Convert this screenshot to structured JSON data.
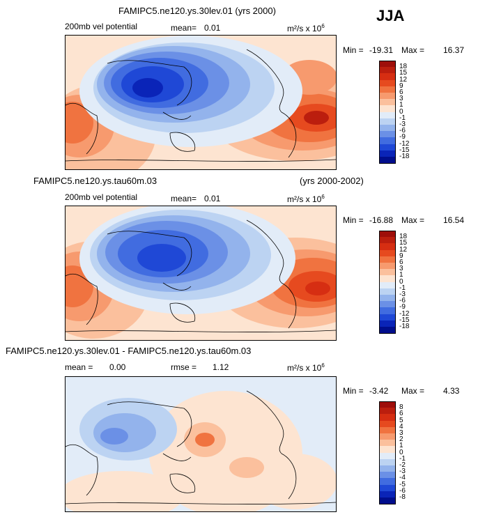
{
  "season": "JJA",
  "panels": [
    {
      "title": "FAMIPC5.ne120.ys.30lev.01 (yrs 2000)",
      "variable": "200mb vel potential",
      "stat1_label": "mean=",
      "stat1_value": "0.01",
      "units": "m²/s x 10",
      "units_exp": "6",
      "min_label": "Min = ",
      "min_value": "-19.31",
      "max_label": "Max = ",
      "max_value": "16.37",
      "colorbar": {
        "labels": [
          "18",
          "15",
          "12",
          "9",
          "6",
          "3",
          "1",
          "0",
          "-1",
          "-3",
          "-6",
          "-9",
          "-12",
          "-15",
          "-18"
        ],
        "colors": [
          "#9e0e0a",
          "#bb1e0e",
          "#d62e12",
          "#e64a1f",
          "#f07340",
          "#f79a6e",
          "#fbc09d",
          "#fde4d1",
          "#e2ecf8",
          "#bcd3f2",
          "#93b3ec",
          "#6b90e6",
          "#416ce0",
          "#1f48d6",
          "#0a24b8",
          "#000e8c"
        ]
      }
    },
    {
      "title": "FAMIPC5.ne120.ys.tau60m.03",
      "title_right": "(yrs 2000-2002)",
      "variable": "200mb vel potential",
      "stat1_label": "mean=",
      "stat1_value": "0.01",
      "units": "m²/s x 10",
      "units_exp": "6",
      "min_label": "Min = ",
      "min_value": "-16.88",
      "max_label": "Max = ",
      "max_value": "16.54",
      "colorbar": {
        "labels": [
          "18",
          "15",
          "12",
          "9",
          "6",
          "3",
          "1",
          "0",
          "-1",
          "-3",
          "-6",
          "-9",
          "-12",
          "-15",
          "-18"
        ],
        "colors": [
          "#9e0e0a",
          "#bb1e0e",
          "#d62e12",
          "#e64a1f",
          "#f07340",
          "#f79a6e",
          "#fbc09d",
          "#fde4d1",
          "#e2ecf8",
          "#bcd3f2",
          "#93b3ec",
          "#6b90e6",
          "#416ce0",
          "#1f48d6",
          "#0a24b8",
          "#000e8c"
        ]
      }
    },
    {
      "title": "FAMIPC5.ne120.ys.30lev.01 - FAMIPC5.ne120.ys.tau60m.03",
      "stat1_label": "mean =",
      "stat1_value": "0.00",
      "stat2_label": "rmse =",
      "stat2_value": "1.12",
      "units": "m²/s x 10",
      "units_exp": "6",
      "min_label": "Min = ",
      "min_value": "-3.42",
      "max_label": "Max = ",
      "max_value": "4.33",
      "colorbar": {
        "labels": [
          "8",
          "6",
          "5",
          "4",
          "3",
          "2",
          "1",
          "0",
          "-1",
          "-2",
          "-3",
          "-4",
          "-5",
          "-6",
          "-8"
        ],
        "colors": [
          "#9e0e0a",
          "#bb1e0e",
          "#d62e12",
          "#e64a1f",
          "#f07340",
          "#f79a6e",
          "#fbc09d",
          "#fde4d1",
          "#e2ecf8",
          "#bcd3f2",
          "#93b3ec",
          "#6b90e6",
          "#416ce0",
          "#1f48d6",
          "#0a24b8",
          "#000e8c"
        ]
      }
    }
  ],
  "chart_data": [
    {
      "type": "heatmap",
      "title": "FAMIPC5.ne120.ys.30lev.01 (yrs 2000)",
      "field": "200mb vel potential",
      "mean": 0.01,
      "min": -19.31,
      "max": 16.37,
      "contour_levels": [
        -18,
        -15,
        -12,
        -9,
        -6,
        -3,
        -1,
        0,
        1,
        3,
        6,
        9,
        12,
        15,
        18
      ]
    },
    {
      "type": "heatmap",
      "title": "FAMIPC5.ne120.ys.tau60m.03",
      "field": "200mb vel potential",
      "mean": 0.01,
      "min": -16.88,
      "max": 16.54,
      "contour_levels": [
        -18,
        -15,
        -12,
        -9,
        -6,
        -3,
        -1,
        0,
        1,
        3,
        6,
        9,
        12,
        15,
        18
      ]
    },
    {
      "type": "heatmap",
      "title": "FAMIPC5.ne120.ys.30lev.01 - FAMIPC5.ne120.ys.tau60m.03",
      "mean": 0.0,
      "rmse": 1.12,
      "min": -3.42,
      "max": 4.33,
      "contour_levels": [
        -8,
        -6,
        -5,
        -4,
        -3,
        -2,
        -1,
        0,
        1,
        2,
        3,
        4,
        5,
        6,
        8
      ]
    }
  ]
}
